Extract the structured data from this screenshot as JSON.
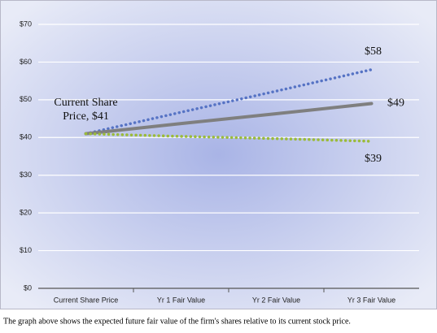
{
  "chart_data": {
    "type": "line",
    "categories": [
      "Current Share Price",
      "Yr 1 Fair Value",
      "Yr 2 Fair Value",
      "Yr 3 Fair Value"
    ],
    "series": [
      {
        "color": "#5673c4",
        "style": "dotted",
        "values": [
          41,
          46.7,
          52.3,
          58
        ],
        "value_labels": [
          null,
          null,
          null,
          "$58"
        ]
      },
      {
        "color": "#7f7f7f",
        "style": "solid",
        "values": [
          41,
          43.7,
          46.3,
          49
        ],
        "value_labels": [
          null,
          null,
          null,
          "$49"
        ]
      },
      {
        "color": "#9bbb3a",
        "style": "dotted",
        "values": [
          41,
          40.3,
          39.7,
          39
        ],
        "value_labels": [
          null,
          null,
          null,
          "$39"
        ]
      }
    ],
    "annotation": [
      "Current Share",
      "Price, $41"
    ],
    "ylim": [
      0,
      70
    ],
    "yticks": [
      {
        "value": 0,
        "label": "$0"
      },
      {
        "value": 10,
        "label": "$10"
      },
      {
        "value": 20,
        "label": "$20"
      },
      {
        "value": 30,
        "label": "$30"
      },
      {
        "value": 40,
        "label": "$40"
      },
      {
        "value": 50,
        "label": "$50"
      },
      {
        "value": 60,
        "label": "$60"
      },
      {
        "value": 70,
        "label": "$70"
      }
    ],
    "grid": true,
    "caption": "The graph above shows the expected future fair value of the firm's shares relative to its current stock price."
  }
}
